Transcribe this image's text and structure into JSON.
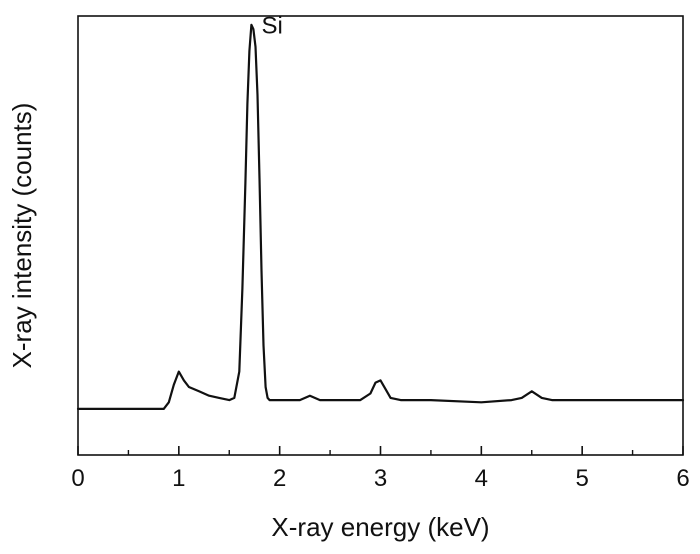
{
  "chart_data": {
    "type": "line",
    "title": "",
    "xlabel": "X-ray energy (keV)",
    "ylabel": "X-ray intensity (counts)",
    "xlim": [
      0,
      6
    ],
    "ylim": [
      0,
      100
    ],
    "x_ticks": [
      0,
      1,
      2,
      3,
      4,
      5,
      6
    ],
    "x_tick_labels": [
      "0",
      "1",
      "2",
      "3",
      "4",
      "5",
      "6"
    ],
    "y_ticks_shown": false,
    "grid": false,
    "legend": "none",
    "annotations": [
      {
        "text": "Si",
        "x": 1.82,
        "y": 96
      }
    ],
    "series": [
      {
        "color": "#111111",
        "x": [
          0.0,
          0.5,
          0.85,
          0.9,
          0.95,
          1.0,
          1.05,
          1.1,
          1.2,
          1.3,
          1.4,
          1.5,
          1.55,
          1.6,
          1.63,
          1.66,
          1.68,
          1.7,
          1.72,
          1.74,
          1.76,
          1.78,
          1.8,
          1.82,
          1.84,
          1.86,
          1.88,
          1.9,
          2.0,
          2.2,
          2.3,
          2.4,
          2.6,
          2.8,
          2.9,
          2.95,
          3.0,
          3.05,
          3.1,
          3.2,
          3.5,
          4.0,
          4.3,
          4.4,
          4.5,
          4.6,
          4.7,
          5.0,
          5.5,
          6.0
        ],
        "y": [
          10.5,
          10.5,
          10.5,
          12.0,
          16.0,
          19.0,
          17.0,
          15.5,
          14.5,
          13.5,
          13.0,
          12.5,
          13.0,
          19.0,
          38.0,
          62.0,
          80.0,
          92.0,
          98.0,
          97.0,
          93.0,
          82.0,
          63.0,
          42.0,
          25.0,
          15.5,
          13.0,
          12.5,
          12.5,
          12.5,
          13.5,
          12.5,
          12.5,
          12.5,
          14.0,
          16.5,
          17.0,
          15.0,
          13.0,
          12.5,
          12.5,
          12.0,
          12.5,
          13.0,
          14.5,
          13.0,
          12.5,
          12.5,
          12.5,
          12.5
        ]
      }
    ]
  }
}
